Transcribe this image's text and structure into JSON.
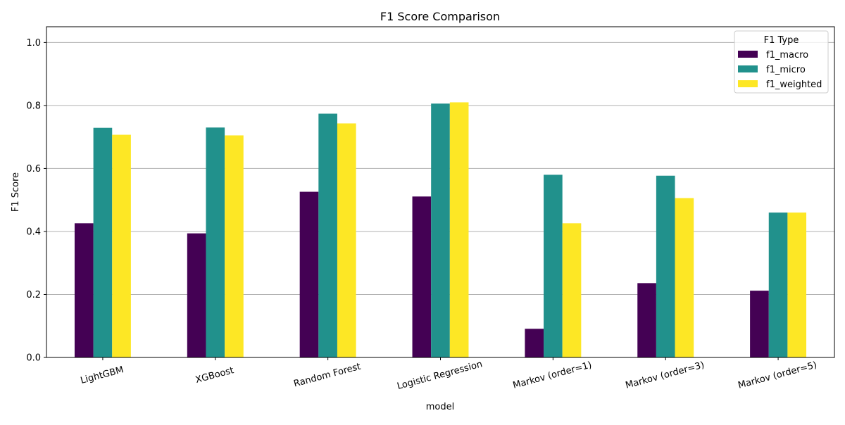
{
  "chart_data": {
    "type": "bar",
    "title": "F1 Score Comparison",
    "xlabel": "model",
    "ylabel": "F1 Score",
    "ylim": [
      0,
      1.05
    ],
    "yticks": [
      "0.0",
      "0.2",
      "0.4",
      "0.6",
      "0.8",
      "1.0"
    ],
    "grid": "horizontal",
    "legend_title": "F1 Type",
    "legend_position": "top-right",
    "categories": [
      "LightGBM",
      "XGBoost",
      "Random Forest",
      "Logistic Regression",
      "Markov (order=1)",
      "Markov (order=3)",
      "Markov (order=5)"
    ],
    "series": [
      {
        "name": "f1_macro",
        "color": "#440154",
        "values": [
          0.426,
          0.394,
          0.526,
          0.511,
          0.091,
          0.236,
          0.212
        ]
      },
      {
        "name": "f1_micro",
        "color": "#21918c",
        "values": [
          0.729,
          0.73,
          0.774,
          0.806,
          0.58,
          0.577,
          0.46
        ]
      },
      {
        "name": "f1_weighted",
        "color": "#fde725",
        "values": [
          0.707,
          0.705,
          0.743,
          0.81,
          0.426,
          0.506,
          0.46
        ]
      }
    ]
  }
}
